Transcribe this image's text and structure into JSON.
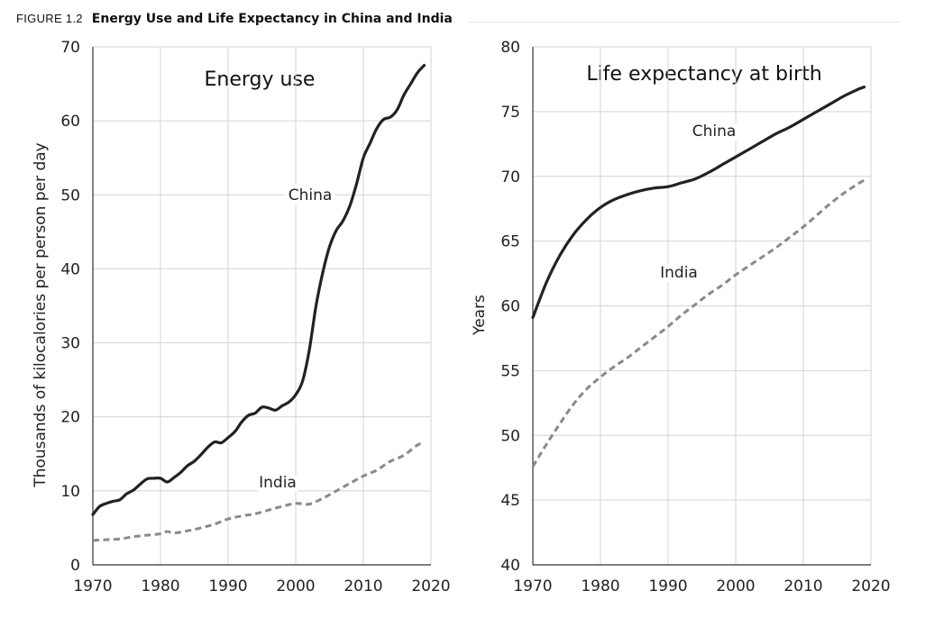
{
  "figure": {
    "number": "FIGURE 1.2",
    "title": "Energy Use and Life Expectancy in China and India"
  },
  "chart_data": [
    {
      "type": "line",
      "title": "Energy use",
      "xlabel": "",
      "ylabel": "Thousands of kilocalories per person per day",
      "xlim": [
        1970,
        2020
      ],
      "ylim": [
        0,
        70
      ],
      "xticks": [
        1970,
        1980,
        1990,
        2000,
        2010,
        2020
      ],
      "yticks": [
        0,
        10,
        20,
        30,
        40,
        50,
        60,
        70
      ],
      "grid": true,
      "legend": "none",
      "series": [
        {
          "name": "China",
          "style": "solid",
          "color": "#222222",
          "x": [
            1970,
            1971,
            1972,
            1973,
            1974,
            1975,
            1976,
            1977,
            1978,
            1979,
            1980,
            1981,
            1982,
            1983,
            1984,
            1985,
            1986,
            1987,
            1988,
            1989,
            1990,
            1991,
            1992,
            1993,
            1994,
            1995,
            1996,
            1997,
            1998,
            1999,
            2000,
            2001,
            2002,
            2003,
            2004,
            2005,
            2006,
            2007,
            2008,
            2009,
            2010,
            2011,
            2012,
            2013,
            2014,
            2015,
            2016,
            2017,
            2018,
            2019
          ],
          "y": [
            6.8,
            7.9,
            8.3,
            8.6,
            8.8,
            9.6,
            10.1,
            10.9,
            11.6,
            11.7,
            11.7,
            11.2,
            11.8,
            12.5,
            13.4,
            14.0,
            14.9,
            15.9,
            16.6,
            16.5,
            17.2,
            18.0,
            19.3,
            20.2,
            20.5,
            21.3,
            21.2,
            20.9,
            21.5,
            22.0,
            23.0,
            24.8,
            29.0,
            35.0,
            39.5,
            43.0,
            45.2,
            46.5,
            48.5,
            51.5,
            55.0,
            57.0,
            59.0,
            60.2,
            60.5,
            61.5,
            63.5,
            65.0,
            66.5,
            67.5
          ]
        },
        {
          "name": "India",
          "style": "dashed",
          "color": "#8a8a8a",
          "x": [
            1970,
            1972,
            1974,
            1976,
            1978,
            1980,
            1981,
            1982,
            1984,
            1986,
            1988,
            1990,
            1992,
            1994,
            1996,
            1998,
            2000,
            2002,
            2004,
            2006,
            2008,
            2010,
            2012,
            2014,
            2016,
            2018,
            2019
          ],
          "y": [
            3.3,
            3.4,
            3.5,
            3.8,
            4.0,
            4.2,
            4.5,
            4.3,
            4.6,
            5.0,
            5.5,
            6.2,
            6.6,
            6.9,
            7.4,
            7.9,
            8.3,
            8.2,
            9.0,
            10.0,
            11.0,
            12.0,
            12.8,
            14.0,
            14.8,
            16.2,
            16.4
          ]
        }
      ],
      "annotations": [
        "China",
        "India"
      ]
    },
    {
      "type": "line",
      "title": "Life expectancy at birth",
      "xlabel": "",
      "ylabel": "Years",
      "xlim": [
        1970,
        2020
      ],
      "ylim": [
        40,
        80
      ],
      "xticks": [
        1970,
        1980,
        1990,
        2000,
        2010,
        2020
      ],
      "yticks": [
        40,
        45,
        50,
        55,
        60,
        65,
        70,
        75,
        80
      ],
      "grid": true,
      "legend": "none",
      "series": [
        {
          "name": "China",
          "style": "solid",
          "color": "#222222",
          "x": [
            1970,
            1972,
            1974,
            1976,
            1978,
            1980,
            1982,
            1984,
            1986,
            1988,
            1990,
            1992,
            1994,
            1996,
            1998,
            2000,
            2002,
            2004,
            2006,
            2008,
            2010,
            2012,
            2014,
            2016,
            2018,
            2019
          ],
          "y": [
            59.1,
            61.8,
            63.9,
            65.5,
            66.7,
            67.6,
            68.2,
            68.6,
            68.9,
            69.1,
            69.2,
            69.5,
            69.8,
            70.3,
            70.9,
            71.5,
            72.1,
            72.7,
            73.3,
            73.8,
            74.4,
            75.0,
            75.6,
            76.2,
            76.7,
            76.9
          ]
        },
        {
          "name": "India",
          "style": "dashed",
          "color": "#8a8a8a",
          "x": [
            1970,
            1972,
            1974,
            1976,
            1978,
            1980,
            1982,
            1984,
            1986,
            1988,
            1990,
            1992,
            1994,
            1996,
            1998,
            2000,
            2002,
            2004,
            2006,
            2008,
            2010,
            2012,
            2014,
            2016,
            2018,
            2019
          ],
          "y": [
            47.6,
            49.3,
            50.9,
            52.4,
            53.6,
            54.5,
            55.3,
            56.0,
            56.8,
            57.6,
            58.4,
            59.3,
            60.1,
            60.9,
            61.6,
            62.4,
            63.1,
            63.8,
            64.5,
            65.3,
            66.1,
            67.0,
            67.9,
            68.7,
            69.4,
            69.7
          ]
        }
      ],
      "annotations": [
        "China",
        "India"
      ]
    }
  ]
}
